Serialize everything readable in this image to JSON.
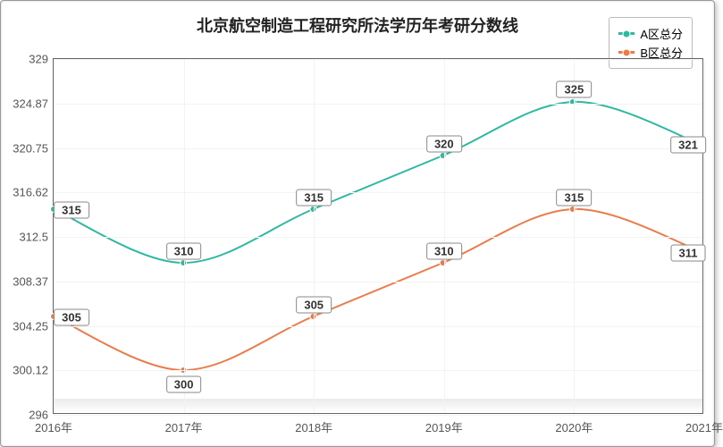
{
  "chart": {
    "type": "line",
    "title": "北京航空制造工程研究所法学历年考研分数线",
    "title_fontsize": 18,
    "background_color": "#ffffff",
    "grid_color": "#f3f3f3",
    "border_color": "#666666",
    "label_color": "#555555",
    "label_fontsize": 13,
    "data_label_fontsize": 13,
    "line_width": 2,
    "marker_radius": 3.5,
    "curve_smoothing": true,
    "x_categories": [
      "2016年",
      "2017年",
      "2018年",
      "2019年",
      "2020年",
      "2021年"
    ],
    "ylim": [
      296,
      329
    ],
    "y_ticks": [
      296,
      300.12,
      304.25,
      308.37,
      312.5,
      316.62,
      320.75,
      324.87,
      329
    ],
    "y_tick_labels": [
      "296",
      "300.12",
      "304.25",
      "308.37",
      "312.5",
      "316.62",
      "320.75",
      "324.87",
      "329"
    ],
    "legend": {
      "position": "top-right",
      "items": [
        "A区总分",
        "B区总分"
      ]
    },
    "series": [
      {
        "name": "A区总分",
        "color": "#2fb8a0",
        "values": [
          315,
          310,
          315,
          320,
          325,
          321
        ],
        "label_offsets_y": [
          0,
          -14,
          -14,
          -14,
          -14,
          0
        ]
      },
      {
        "name": "B区总分",
        "color": "#e87c4a",
        "values": [
          305,
          300,
          305,
          310,
          315,
          311
        ],
        "label_offsets_y": [
          0,
          14,
          -14,
          -14,
          -14,
          0
        ]
      }
    ]
  }
}
